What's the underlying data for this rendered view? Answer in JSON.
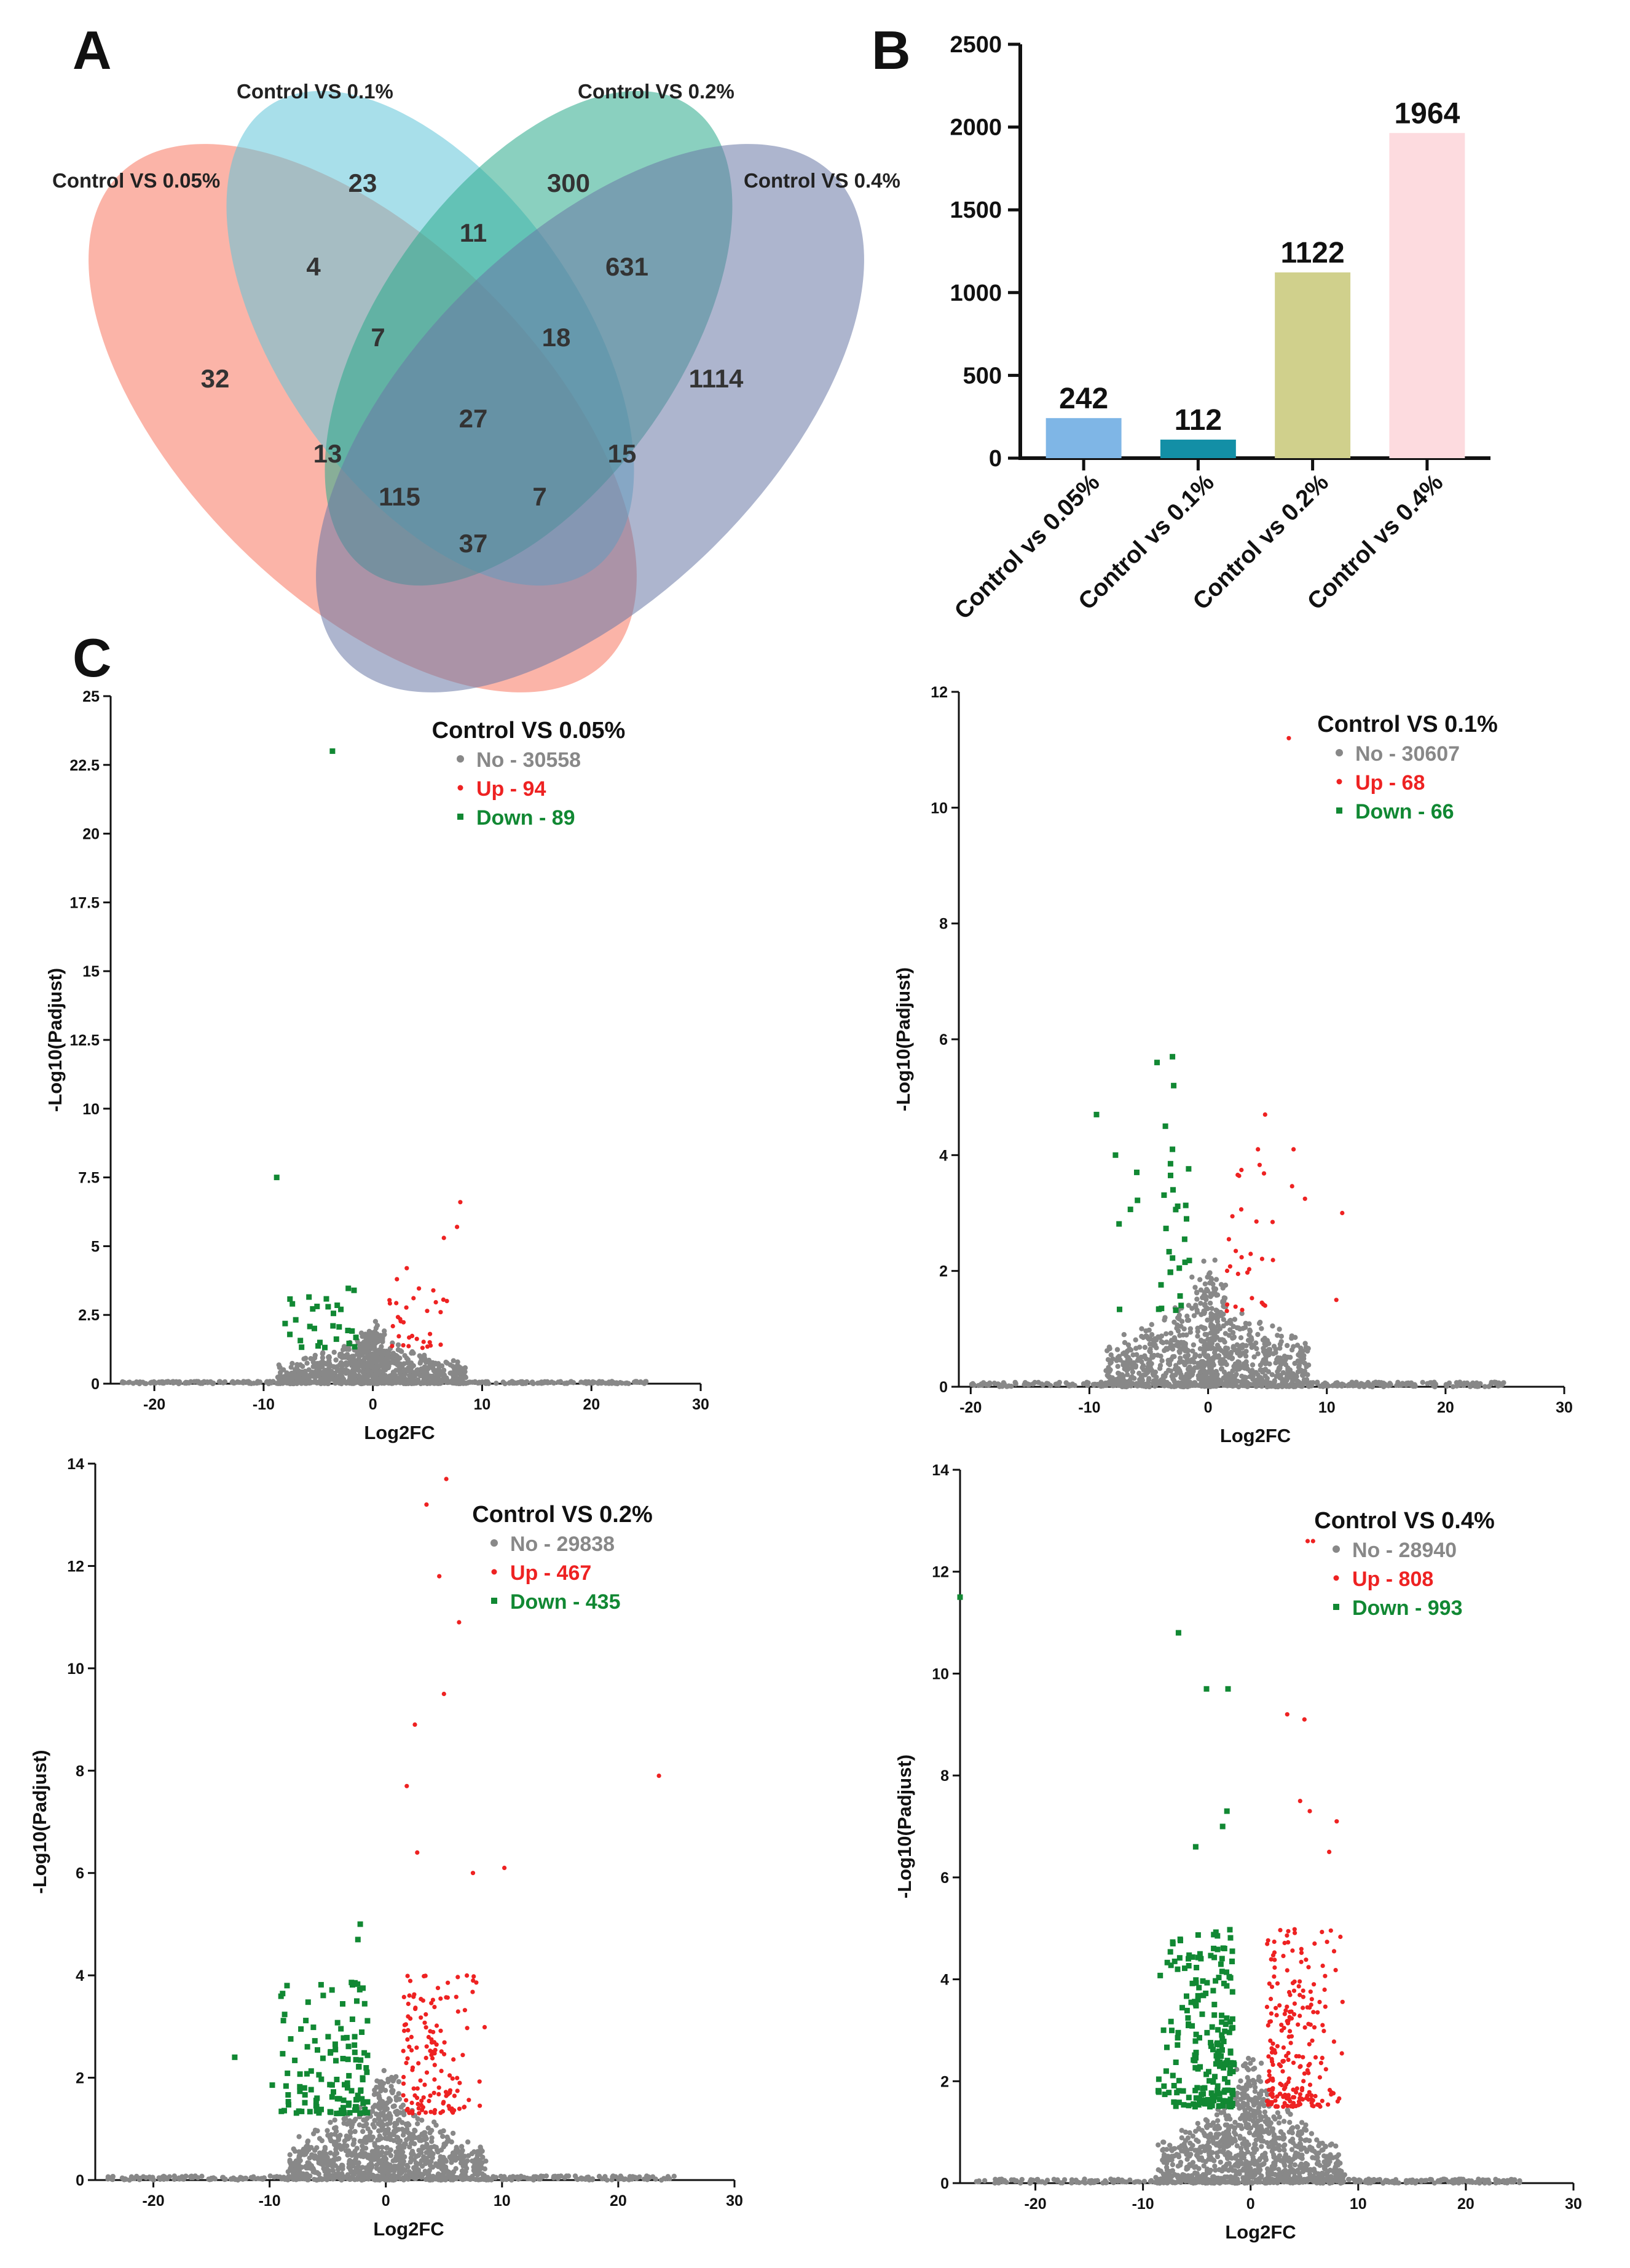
{
  "panels": {
    "A": "A",
    "B": "B",
    "C": "C"
  },
  "colors": {
    "no": "#888888",
    "up": "#ee2222",
    "down": "#118833"
  },
  "chart_data": [
    {
      "type": "venn",
      "panel": "A",
      "sets": [
        {
          "name": "Control VS 0.05%",
          "color": "#f87660"
        },
        {
          "name": "Control VS 0.1%",
          "color": "#60c4d8"
        },
        {
          "name": "Control VS 0.2%",
          "color": "#2aaa8a"
        },
        {
          "name": "Control VS 0.4%",
          "color": "#6a78a6"
        }
      ],
      "regions": [
        {
          "sets": [
            "0.05%"
          ],
          "value": "32"
        },
        {
          "sets": [
            "0.1%"
          ],
          "value": "23"
        },
        {
          "sets": [
            "0.2%"
          ],
          "value": "300"
        },
        {
          "sets": [
            "0.4%"
          ],
          "value": "1114"
        },
        {
          "sets": [
            "0.05%",
            "0.1%"
          ],
          "value": "4"
        },
        {
          "sets": [
            "0.1%",
            "0.2%"
          ],
          "value": "11"
        },
        {
          "sets": [
            "0.2%",
            "0.4%"
          ],
          "value": "631"
        },
        {
          "sets": [
            "0.05%",
            "0.1%",
            "0.2%"
          ],
          "value": "7"
        },
        {
          "sets": [
            "0.1%",
            "0.2%",
            "0.4%"
          ],
          "value": "18"
        },
        {
          "sets": [
            "0.05%",
            "0.1%",
            "0.2%",
            "0.4%"
          ],
          "value": "27"
        },
        {
          "sets": [
            "0.05%",
            "0.2%"
          ],
          "value": "13"
        },
        {
          "sets": [
            "0.1%",
            "0.4%"
          ],
          "value": "15"
        },
        {
          "sets": [
            "0.05%",
            "0.2%",
            "0.4%"
          ],
          "value": "115"
        },
        {
          "sets": [
            "0.05%",
            "0.1%",
            "0.4%"
          ],
          "value": "7"
        },
        {
          "sets": [
            "0.05%",
            "0.4%"
          ],
          "value": "37"
        }
      ]
    },
    {
      "type": "bar",
      "panel": "B",
      "categories": [
        "Control vs 0.05%",
        "Control vs 0.1%",
        "Control vs 0.2%",
        "Control vs 0.4%"
      ],
      "values": [
        242,
        112,
        1122,
        1964
      ],
      "colors": [
        "#7fb6e6",
        "#138fa6",
        "#d0d08c",
        "#fddbdf"
      ],
      "ylim": [
        0,
        2500
      ],
      "yticks": [
        0,
        500,
        1000,
        1500,
        2000,
        2500
      ],
      "title": "",
      "xlabel": "",
      "ylabel": ""
    },
    {
      "type": "scatter",
      "panel": "C",
      "title": "Control VS 0.05%",
      "xlabel": "Log2FC",
      "ylabel": "-Log10(Padjust)",
      "xlim": [
        -24,
        30
      ],
      "ylim": [
        0,
        25
      ],
      "xticks": [
        -20,
        -10,
        0,
        10,
        20,
        30
      ],
      "yticks": [
        0,
        2.5,
        5,
        7.5,
        10,
        12.5,
        15,
        17.5,
        20,
        22.5,
        25
      ],
      "legend": [
        {
          "label": "No - 30558",
          "key": "no"
        },
        {
          "label": "Up - 94",
          "key": "up"
        },
        {
          "label": "Down - 89",
          "key": "down"
        }
      ],
      "counts": {
        "no": 30558,
        "up": 94,
        "down": 89
      },
      "highlights": {
        "down": [
          [
            -3.7,
            23
          ],
          [
            -8.8,
            7.5
          ]
        ],
        "up": [
          [
            8,
            6.6
          ],
          [
            7.7,
            5.7
          ],
          [
            6.5,
            5.3
          ],
          [
            3.1,
            4.2
          ],
          [
            2.2,
            3.8
          ],
          [
            6.2,
            2.6
          ]
        ]
      },
      "spread": {
        "downX": [
          -8.5,
          -1.5
        ],
        "upX": [
          1.5,
          7.5
        ],
        "maxY": 3.5,
        "sigY": 1.3
      }
    },
    {
      "type": "scatter",
      "panel": "C",
      "title": "Control VS 0.1%",
      "xlabel": "Log2FC",
      "ylabel": "-Log10(Padjust)",
      "xlim": [
        -21,
        30
      ],
      "ylim": [
        0,
        12
      ],
      "xticks": [
        -20,
        -10,
        0,
        10,
        20,
        30
      ],
      "yticks": [
        0,
        2,
        4,
        6,
        8,
        10,
        12
      ],
      "legend": [
        {
          "label": "No - 30607",
          "key": "no"
        },
        {
          "label": "Up - 68",
          "key": "up"
        },
        {
          "label": "Down - 66",
          "key": "down"
        }
      ],
      "counts": {
        "no": 30607,
        "up": 68,
        "down": 66
      },
      "highlights": {
        "down": [
          [
            -3,
            5.7
          ],
          [
            -4.3,
            5.6
          ],
          [
            -9.4,
            4.7
          ],
          [
            -2.9,
            5.2
          ],
          [
            -3.6,
            4.5
          ],
          [
            -3,
            4.1
          ],
          [
            -7.8,
            4
          ]
        ],
        "up": [
          [
            6.8,
            11.2
          ],
          [
            4.8,
            4.7
          ],
          [
            11.3,
            3
          ],
          [
            7.2,
            4.1
          ],
          [
            10.8,
            1.5
          ],
          [
            4.2,
            4.1
          ]
        ]
      },
      "spread": {
        "downX": [
          -9.5,
          -1.5
        ],
        "upX": [
          1.5,
          9
        ],
        "maxY": 4,
        "sigY": 1.3
      }
    },
    {
      "type": "scatter",
      "panel": "C",
      "title": "Control VS 0.2%",
      "xlabel": "Log2FC",
      "ylabel": "-Log10(Padjust)",
      "xlim": [
        -25,
        30
      ],
      "ylim": [
        0,
        14
      ],
      "xticks": [
        -20,
        -10,
        0,
        10,
        20,
        30
      ],
      "yticks": [
        0,
        2,
        4,
        6,
        8,
        10,
        12,
        14
      ],
      "legend": [
        {
          "label": "No - 29838",
          "key": "no"
        },
        {
          "label": "Up - 467",
          "key": "up"
        },
        {
          "label": "Down - 435",
          "key": "down"
        }
      ],
      "counts": {
        "no": 29838,
        "up": 467,
        "down": 435
      },
      "highlights": {
        "down": [
          [
            -13,
            2.4
          ],
          [
            -8.5,
            3.8
          ],
          [
            -2.2,
            5
          ],
          [
            -2.4,
            4.7
          ]
        ],
        "up": [
          [
            5.2,
            13.7
          ],
          [
            3.5,
            13.2
          ],
          [
            4.6,
            11.8
          ],
          [
            6.3,
            10.9
          ],
          [
            5,
            9.5
          ],
          [
            2.5,
            8.9
          ],
          [
            1.8,
            7.7
          ],
          [
            23.5,
            7.9
          ],
          [
            10.2,
            6.1
          ],
          [
            7.5,
            6
          ],
          [
            2.7,
            6.4
          ]
        ]
      },
      "spread": {
        "downX": [
          -10,
          -1.5
        ],
        "upX": [
          1.5,
          9
        ],
        "maxY": 4,
        "sigY": 1.3
      }
    },
    {
      "type": "scatter",
      "panel": "C",
      "title": "Control VS 0.4%",
      "xlabel": "Log2FC",
      "ylabel": "-Log10(Padjust)",
      "xlim": [
        -27,
        30
      ],
      "ylim": [
        0,
        14
      ],
      "xticks": [
        -20,
        -10,
        0,
        10,
        20,
        30
      ],
      "yticks": [
        0,
        2,
        4,
        6,
        8,
        10,
        12,
        14
      ],
      "legend": [
        {
          "label": "No - 28940",
          "key": "no"
        },
        {
          "label": "Up - 808",
          "key": "up"
        },
        {
          "label": "Down - 993",
          "key": "down"
        }
      ],
      "counts": {
        "no": 28940,
        "up": 808,
        "down": 993
      },
      "highlights": {
        "down": [
          [
            -27,
            11.5
          ],
          [
            -6.7,
            10.8
          ],
          [
            -4.1,
            9.7
          ],
          [
            -2.1,
            9.7
          ],
          [
            -2.2,
            7.3
          ],
          [
            -2.6,
            7
          ],
          [
            -5.1,
            6.6
          ]
        ],
        "up": [
          [
            5.3,
            12.6
          ],
          [
            5.8,
            12.6
          ],
          [
            3.4,
            9.2
          ],
          [
            5,
            9.1
          ],
          [
            4.6,
            7.5
          ],
          [
            5.5,
            7.3
          ],
          [
            8,
            7.1
          ],
          [
            7.3,
            6.5
          ]
        ]
      },
      "spread": {
        "downX": [
          -9,
          -1.5
        ],
        "upX": [
          1.5,
          9
        ],
        "maxY": 5,
        "sigY": 1.5
      }
    }
  ]
}
